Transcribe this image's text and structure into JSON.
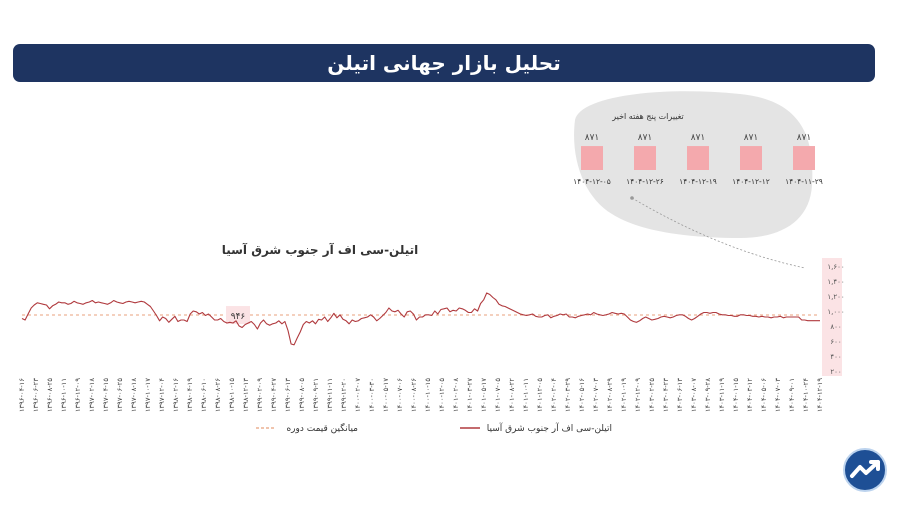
{
  "header": {
    "title": "تحلیل بازار جهانی اتیلن"
  },
  "inset": {
    "title": "تغییرات پنج هفته اخیر",
    "categories": [
      "۱۴۰۴-۱۲-۰۵",
      "۱۴۰۴-۱۲-۲۶",
      "۱۴۰۴-۱۲-۱۹",
      "۱۴۰۴-۱۲-۱۲",
      "۱۴۰۴-۱۱-۲۹"
    ],
    "values": [
      871,
      871,
      871,
      871,
      871
    ],
    "value_labels": [
      "۸۷۱",
      "۸۷۱",
      "۸۷۱",
      "۸۷۱",
      "۸۷۱"
    ],
    "bar_color": "#f4a9ad",
    "bg_color": "#e4e4e4"
  },
  "chart_data": {
    "type": "line",
    "title": "اتیلن-سی اف آر جنوب شرق آسیا",
    "ylim": [
      200,
      1600
    ],
    "y_ticks": [
      200,
      400,
      600,
      800,
      1000,
      1200,
      1400,
      1600
    ],
    "y_tick_labels": [
      "۲۰۰",
      "۴۰۰",
      "۶۰۰",
      "۸۰۰",
      "۱,۰۰۰",
      "۱,۲۰۰",
      "۱,۴۰۰",
      "۱,۶۰۰"
    ],
    "x_labels": [
      "۱۳۹۶-۰۴-۱۶",
      "۱۳۹۶-۰۶-۲۳",
      "۱۳۹۶-۰۸-۲۵",
      "۱۳۹۶-۱۰-۱۱",
      "۱۳۹۶-۱۲-۰۹",
      "۱۳۹۷-۰۲-۱۸",
      "۱۳۹۷-۰۴-۱۵",
      "۱۳۹۷-۰۶-۲۵",
      "۱۳۹۷-۰۸-۱۸",
      "۱۳۹۷-۱۰-۱۷",
      "۱۳۹۷-۱۲-۰۴",
      "۱۳۹۸-۰۲-۱۶",
      "۱۳۹۸-۰۴-۱۹",
      "۱۳۹۸-۰۶-۱۰",
      "۱۳۹۸-۰۸-۲۶",
      "۱۳۹۸-۱۰-۱۵",
      "۱۳۹۸-۱۲-۱۳",
      "۱۳۹۹-۰۲-۰۹",
      "۱۳۹۹-۰۴-۲۷",
      "۱۳۹۹-۰۶-۱۳",
      "۱۳۹۹-۰۸-۰۵",
      "۱۳۹۹-۰۹-۲۱",
      "۱۳۹۹-۱۱-۱۱",
      "۱۳۹۹-۱۲-۲۰",
      "۱۴۰۰-۰۲-۰۷",
      "۱۴۰۰-۰۳-۳۰",
      "۱۴۰۰-۰۵-۱۷",
      "۱۴۰۰-۰۷-۰۶",
      "۱۴۰۰-۰۸-۲۶",
      "۱۴۰۰-۱۰-۱۵",
      "۱۴۰۰-۱۲-۰۵",
      "۱۴۰۱-۰۲-۰۸",
      "۱۴۰۱-۰۳-۲۷",
      "۱۴۰۱-۰۵-۱۷",
      "۱۴۰۱-۰۷-۰۵",
      "۱۴۰۱-۰۸-۲۲",
      "۱۴۰۱-۱۰-۱۱",
      "۱۴۰۱-۱۲-۰۵",
      "۱۴۰۲-۰۲-۰۴",
      "۱۴۰۲-۰۳-۲۹",
      "۱۴۰۲-۰۵-۱۶",
      "۱۴۰۲-۰۷-۰۳",
      "۱۴۰۲-۰۸-۲۹",
      "۱۴۰۲-۱۰-۱۹",
      "۱۴۰۲-۱۲-۰۹",
      "۱۴۰۳-۰۲-۲۵",
      "۱۴۰۳-۰۴-۲۳",
      "۱۴۰۳-۰۶-۱۳",
      "۱۴۰۳-۰۸-۰۷",
      "۱۴۰۳-۰۹-۲۸",
      "۱۴۰۳-۱۱-۱۹",
      "۱۴۰۴-۰۱-۱۵",
      "۱۴۰۴-۰۳-۱۲",
      "۱۴۰۴-۰۵-۰۶",
      "۱۴۰۴-۰۷-۰۳",
      "۱۴۰۴-۰۹-۰۱",
      "۱۴۰۴-۱۰-۲۴",
      "۱۴۰۴-۱۲-۱۹"
    ],
    "average_value": 946,
    "average_label": "۹۴۶",
    "series": [
      {
        "name": "اتیلن-سی اف آر جنوب شرق آسیا",
        "color": "#b03a3e",
        "values": [
          900,
          880,
          960,
          1040,
          1080,
          1110,
          1100,
          1090,
          1080,
          1030,
          1070,
          1090,
          1120,
          1110,
          1110,
          1090,
          1100,
          1130,
          1110,
          1100,
          1090,
          1110,
          1120,
          1140,
          1110,
          1120,
          1110,
          1100,
          1090,
          1110,
          1140,
          1120,
          1110,
          1100,
          1120,
          1130,
          1120,
          1110,
          1120,
          1130,
          1120,
          1090,
          1060,
          1000,
          940,
          870,
          920,
          900,
          850,
          890,
          930,
          860,
          880,
          880,
          860,
          960,
          1000,
          990,
          960,
          980,
          940,
          960,
          920,
          880,
          880,
          900,
          860,
          840,
          850,
          840,
          870,
          800,
          780,
          820,
          840,
          860,
          820,
          760,
          840,
          880,
          830,
          810,
          830,
          840,
          870,
          830,
          860,
          740,
          560,
          550,
          640,
          720,
          820,
          860,
          840,
          870,
          830,
          890,
          880,
          920,
          860,
          910,
          970,
          910,
          950,
          890,
          870,
          830,
          880,
          860,
          870,
          900,
          910,
          920,
          950,
          920,
          870,
          900,
          940,
          980,
          1040,
          1000,
          990,
          1010,
          960,
          920,
          990,
          1000,
          960,
          880,
          920,
          920,
          950,
          950,
          940,
          1000,
          960,
          1020,
          1030,
          1040,
          990,
          1010,
          1000,
          1040,
          1030,
          1010,
          980,
          980,
          1030,
          1000,
          1100,
          1150,
          1240,
          1220,
          1180,
          1150,
          1090,
          1070,
          1060,
          1040,
          1020,
          1000,
          980,
          960,
          950,
          940,
          950,
          960,
          930,
          920,
          920,
          940,
          950,
          910,
          930,
          940,
          960,
          950,
          960,
          920,
          920,
          910,
          930,
          940,
          950,
          960,
          950,
          980,
          960,
          950,
          940,
          950,
          960,
          980,
          970,
          960,
          970,
          960,
          920,
          880,
          860,
          850,
          870,
          900,
          920,
          900,
          880,
          890,
          900,
          920,
          930,
          920,
          910,
          920,
          940,
          950,
          950,
          930,
          900,
          880,
          900,
          930,
          960,
          980,
          980,
          970,
          980,
          980,
          960,
          950,
          950,
          940,
          940,
          930,
          930,
          950,
          950,
          940,
          940,
          930,
          930,
          920,
          930,
          920,
          920,
          910,
          920,
          920,
          930,
          910,
          920,
          920,
          920,
          920,
          920,
          880,
          880,
          871,
          871,
          871,
          871,
          871
        ]
      }
    ],
    "legend": [
      {
        "label": "اتیلن-سی اف آر جنوب شرق آسیا",
        "style": "solid",
        "color": "#b03a3e"
      },
      {
        "label": "میانگین قیمت دوره",
        "style": "dashed",
        "color": "#e8a07c"
      }
    ],
    "grid": false,
    "legend_position": "bottom"
  }
}
